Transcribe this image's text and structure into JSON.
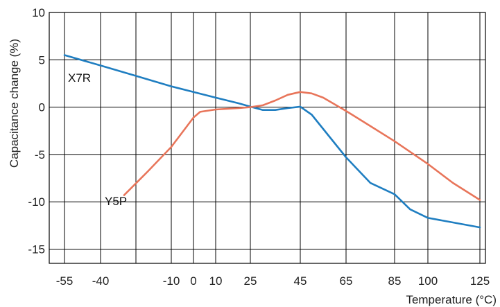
{
  "chart_data": {
    "type": "line",
    "title": "",
    "xlabel": "Temperature (°C)",
    "ylabel": "Capacitance change (%)",
    "x_ticks": [
      -55,
      -40,
      -10,
      0,
      10,
      25,
      45,
      65,
      85,
      100,
      125
    ],
    "y_ticks": [
      10,
      5,
      0,
      -5,
      -10,
      -15
    ],
    "xlim": [
      -55,
      125
    ],
    "ylim": [
      -16.5,
      10
    ],
    "grid": true,
    "series": [
      {
        "name": "X7R",
        "color": "#1f7ec1",
        "points": [
          [
            -55,
            5.5
          ],
          [
            -40,
            4.4
          ],
          [
            -25,
            3.3
          ],
          [
            -10,
            2.2
          ],
          [
            0,
            1.6
          ],
          [
            10,
            1.0
          ],
          [
            20,
            0.4
          ],
          [
            25,
            0.05
          ],
          [
            30,
            -0.3
          ],
          [
            35,
            -0.3
          ],
          [
            40,
            -0.1
          ],
          [
            45,
            0.05
          ],
          [
            50,
            -0.8
          ],
          [
            55,
            -2.3
          ],
          [
            65,
            -5.3
          ],
          [
            75,
            -8.0
          ],
          [
            85,
            -9.2
          ],
          [
            92,
            -10.8
          ],
          [
            100,
            -11.7
          ],
          [
            110,
            -12.1
          ],
          [
            120,
            -12.5
          ],
          [
            125,
            -12.7
          ]
        ]
      },
      {
        "name": "Y5P",
        "color": "#e8755a",
        "points": [
          [
            -30,
            -9.3
          ],
          [
            -20,
            -6.8
          ],
          [
            -10,
            -4.2
          ],
          [
            0,
            -1.1
          ],
          [
            3,
            -0.5
          ],
          [
            10,
            -0.25
          ],
          [
            20,
            -0.1
          ],
          [
            25,
            0.0
          ],
          [
            30,
            0.2
          ],
          [
            35,
            0.7
          ],
          [
            40,
            1.3
          ],
          [
            45,
            1.6
          ],
          [
            50,
            1.45
          ],
          [
            55,
            1.0
          ],
          [
            65,
            -0.4
          ],
          [
            75,
            -2.0
          ],
          [
            85,
            -3.6
          ],
          [
            100,
            -6.0
          ],
          [
            112,
            -8.0
          ],
          [
            125,
            -9.8
          ]
        ]
      }
    ]
  }
}
